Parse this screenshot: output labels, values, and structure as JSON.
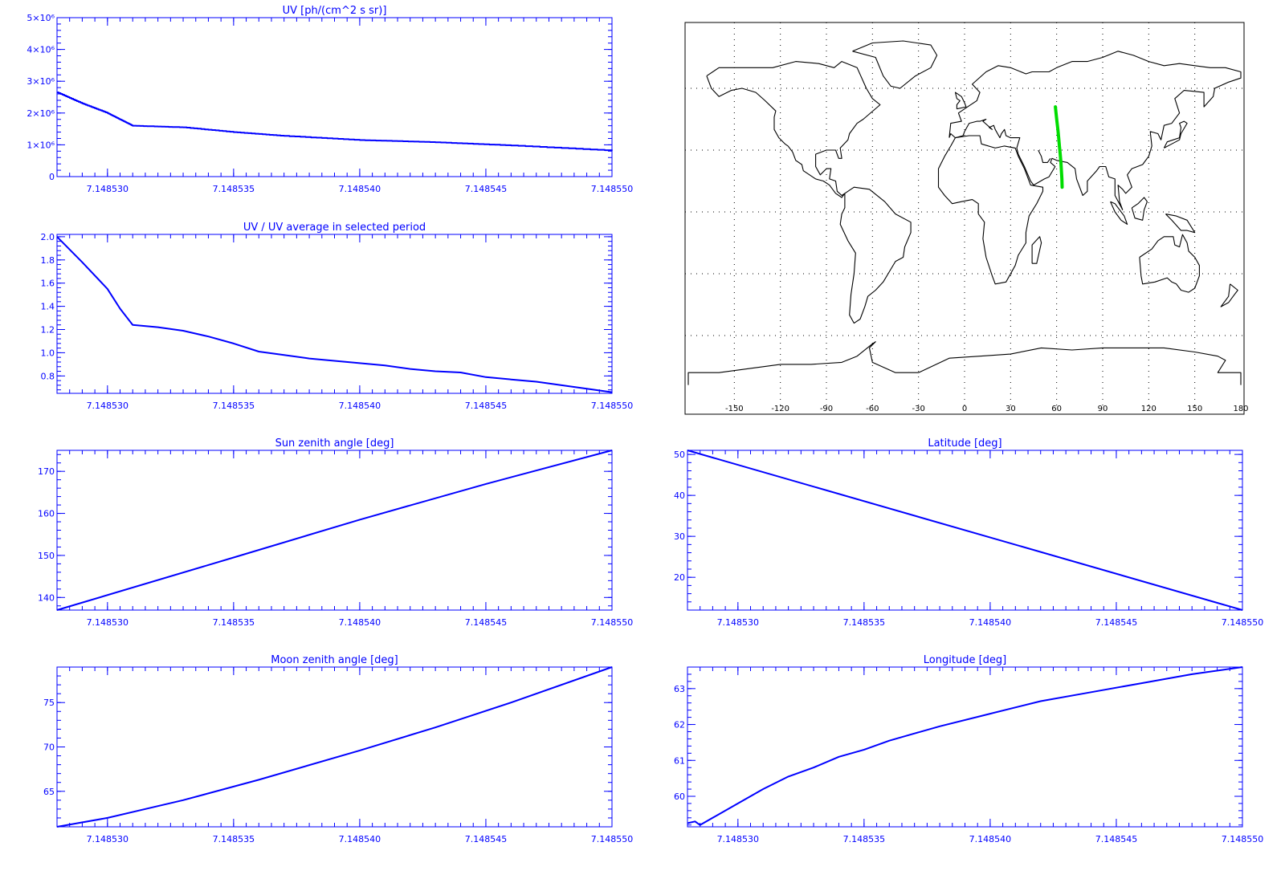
{
  "colors": {
    "plot": "#0000ff",
    "track": "#00dd00",
    "map": "#000000"
  },
  "chart_data": [
    {
      "type": "line",
      "title": "UV [ph/(cm^2 s sr)]",
      "xlim": [
        7.148528,
        7.14855
      ],
      "ylim": [
        0,
        5000000
      ],
      "xticks": [
        7.14853,
        7.148535,
        7.14854,
        7.148545,
        7.14855
      ],
      "xtick_labels": [
        "7.148530",
        "7.148535",
        "7.148540",
        "7.148545",
        "7.148550"
      ],
      "yticks": [
        0,
        1000000,
        2000000,
        3000000,
        4000000,
        5000000
      ],
      "ytick_labels": [
        "0",
        "1×10⁶",
        "2×10⁶",
        "3×10⁶",
        "4×10⁶",
        "5×10⁶"
      ],
      "step": true,
      "x": [
        7.148528,
        7.148529,
        7.14853,
        7.1485305,
        7.148531,
        7.148533,
        7.148535,
        7.148537,
        7.14854,
        7.148543,
        7.148546,
        7.14855
      ],
      "y": [
        2650000,
        2300000,
        2000000,
        1800000,
        1600000,
        1550000,
        1400000,
        1280000,
        1150000,
        1080000,
        980000,
        820000
      ]
    },
    {
      "type": "line",
      "title": "UV / UV average in selected period",
      "xlim": [
        7.148528,
        7.14855
      ],
      "ylim": [
        0.65,
        2.02
      ],
      "xticks": [
        7.14853,
        7.148535,
        7.14854,
        7.148545,
        7.14855
      ],
      "xtick_labels": [
        "7.148530",
        "7.148535",
        "7.148540",
        "7.148545",
        "7.148550"
      ],
      "yticks": [
        0.8,
        1.0,
        1.2,
        1.4,
        1.6,
        1.8,
        2.0
      ],
      "ytick_labels": [
        "0.8",
        "1.0",
        "1.2",
        "1.4",
        "1.6",
        "1.8",
        "2.0"
      ],
      "x": [
        7.148528,
        7.148529,
        7.14853,
        7.1485305,
        7.148531,
        7.148532,
        7.148533,
        7.148534,
        7.148535,
        7.148536,
        7.148537,
        7.148538,
        7.148539,
        7.14854,
        7.148541,
        7.148542,
        7.148543,
        7.148544,
        7.148545,
        7.148546,
        7.148547,
        7.148548,
        7.148549,
        7.14855
      ],
      "y": [
        2.0,
        1.78,
        1.55,
        1.38,
        1.24,
        1.22,
        1.19,
        1.14,
        1.08,
        1.01,
        0.98,
        0.95,
        0.93,
        0.91,
        0.89,
        0.86,
        0.84,
        0.83,
        0.79,
        0.77,
        0.75,
        0.72,
        0.69,
        0.66
      ]
    },
    {
      "type": "line",
      "title": "Sun zenith angle [deg]",
      "xlim": [
        7.148528,
        7.14855
      ],
      "ylim": [
        137,
        175
      ],
      "xticks": [
        7.14853,
        7.148535,
        7.14854,
        7.148545,
        7.14855
      ],
      "xtick_labels": [
        "7.148530",
        "7.148535",
        "7.148540",
        "7.148545",
        "7.148550"
      ],
      "yticks": [
        140,
        150,
        160,
        170
      ],
      "ytick_labels": [
        "140",
        "150",
        "160",
        "170"
      ],
      "x": [
        7.148528,
        7.148535,
        7.14854,
        7.148545,
        7.14855
      ],
      "y": [
        137,
        149.5,
        158.5,
        167,
        175
      ]
    },
    {
      "type": "line",
      "title": "Latitude [deg]",
      "xlim": [
        7.148528,
        7.14855
      ],
      "ylim": [
        12,
        51
      ],
      "xticks": [
        7.14853,
        7.148535,
        7.14854,
        7.148545,
        7.14855
      ],
      "xtick_labels": [
        "7.148530",
        "7.148535",
        "7.148540",
        "7.148545",
        "7.148550"
      ],
      "yticks": [
        20,
        30,
        40,
        50
      ],
      "ytick_labels": [
        "20",
        "30",
        "40",
        "50"
      ],
      "x": [
        7.148528,
        7.14855
      ],
      "y": [
        51,
        12
      ]
    },
    {
      "type": "line",
      "title": "Moon zenith angle [deg]",
      "xlim": [
        7.148528,
        7.14855
      ],
      "ylim": [
        61,
        79
      ],
      "xticks": [
        7.14853,
        7.148535,
        7.14854,
        7.148545,
        7.14855
      ],
      "xtick_labels": [
        "7.148530",
        "7.148535",
        "7.148540",
        "7.148545",
        "7.148550"
      ],
      "yticks": [
        65,
        70,
        75
      ],
      "ytick_labels": [
        "65",
        "70",
        "75"
      ],
      "x": [
        7.148528,
        7.14853,
        7.148533,
        7.148536,
        7.14854,
        7.148543,
        7.148546,
        7.14855
      ],
      "y": [
        61,
        62,
        64,
        66.3,
        69.6,
        72.2,
        75,
        79
      ]
    },
    {
      "type": "line",
      "title": "Longitude [deg]",
      "xlim": [
        7.148528,
        7.14855
      ],
      "ylim": [
        59.15,
        63.6
      ],
      "xticks": [
        7.14853,
        7.148535,
        7.14854,
        7.148545,
        7.14855
      ],
      "xtick_labels": [
        "7.148530",
        "7.148535",
        "7.148540",
        "7.148545",
        "7.148550"
      ],
      "yticks": [
        60,
        61,
        62,
        63
      ],
      "ytick_labels": [
        "60",
        "61",
        "62",
        "63"
      ],
      "x": [
        7.148528,
        7.1485283,
        7.1485285,
        7.148529,
        7.14853,
        7.148531,
        7.148532,
        7.148533,
        7.148534,
        7.148535,
        7.148536,
        7.148537,
        7.148538,
        7.14854,
        7.148542,
        7.148544,
        7.148546,
        7.148548,
        7.14855
      ],
      "y": [
        59.25,
        59.3,
        59.2,
        59.4,
        59.8,
        60.2,
        60.55,
        60.8,
        61.1,
        61.3,
        61.55,
        61.75,
        61.95,
        62.3,
        62.65,
        62.9,
        63.15,
        63.4,
        63.6
      ]
    },
    {
      "type": "map",
      "projection": "equirectangular",
      "lon_range": [
        -180,
        180
      ],
      "lat_range": [
        -90,
        90
      ],
      "xtick_values": [
        -150,
        -120,
        -90,
        -60,
        -30,
        0,
        30,
        60,
        90,
        120,
        150,
        180
      ],
      "xtick_labels": [
        "-150",
        "-120",
        "-90",
        "-60",
        "-30",
        "0",
        "30",
        "60",
        "90",
        "120",
        "150",
        "180"
      ],
      "grid_lat": [
        -60,
        -30,
        0,
        30,
        60
      ],
      "track": {
        "lon": [
          63.6,
          63.4,
          63.1,
          62.8,
          62.3,
          61.8,
          61.3,
          60.8,
          60.2,
          59.6,
          59.2
        ],
        "lat": [
          12,
          16,
          20,
          24,
          28,
          32,
          36,
          40,
          44,
          48,
          51
        ]
      }
    }
  ]
}
